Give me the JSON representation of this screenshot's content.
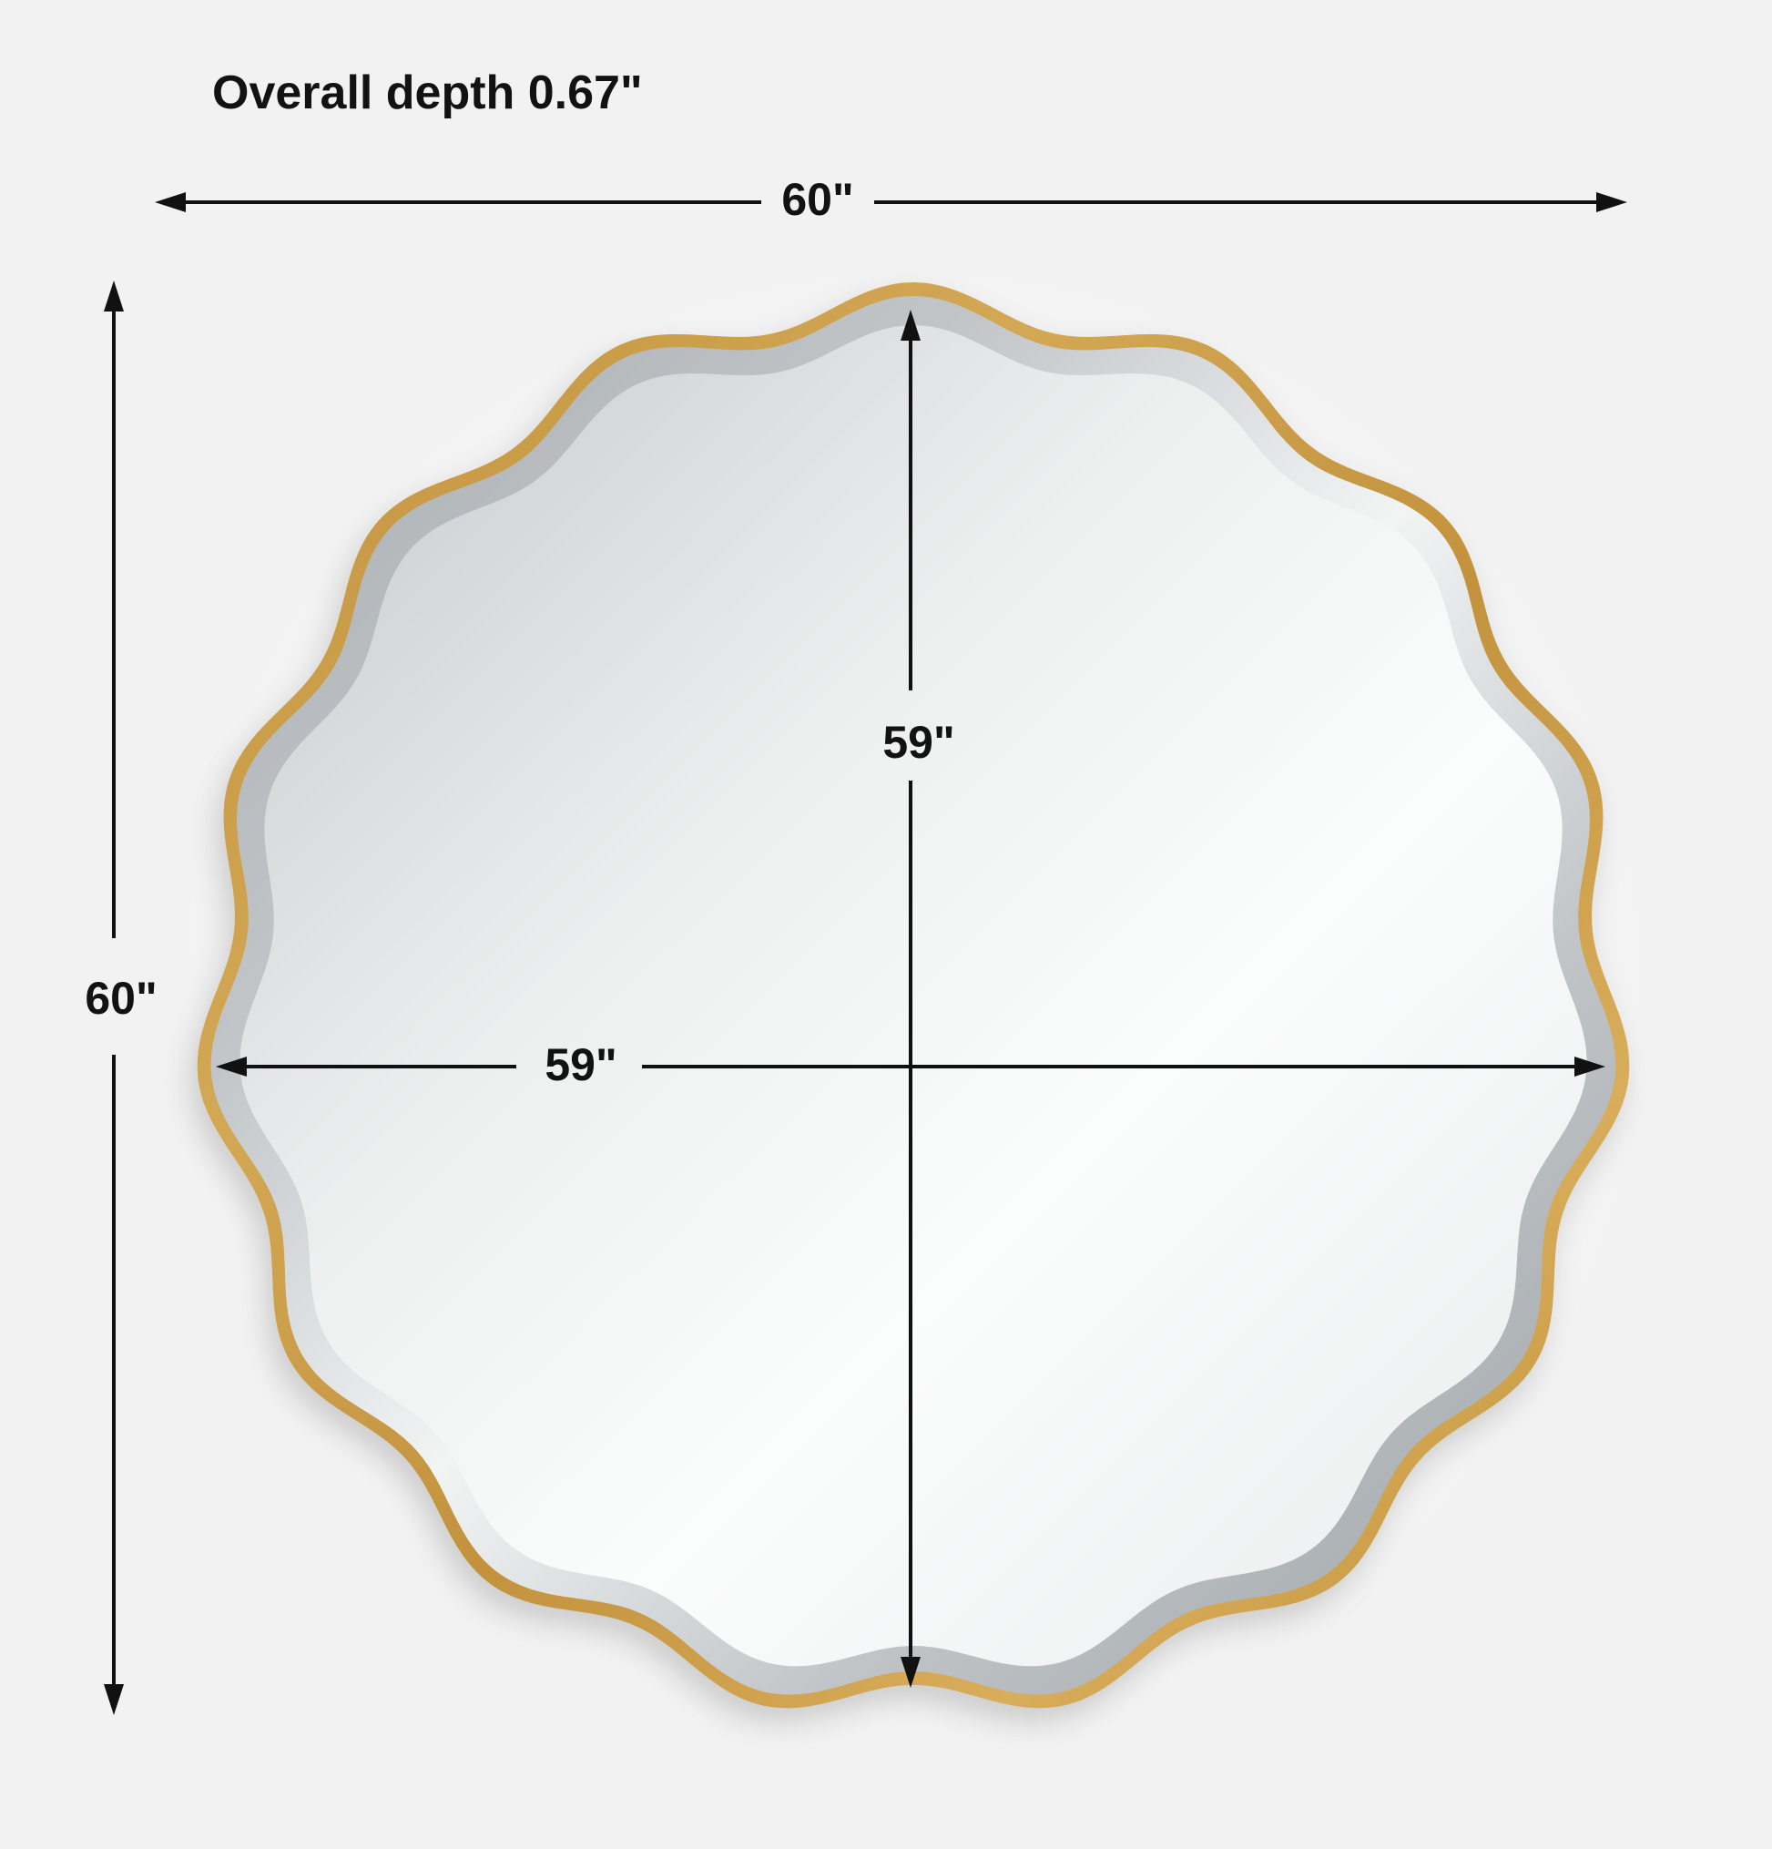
{
  "diagram": {
    "type": "product-dimension-diagram",
    "product": "Round scalloped wall mirror with gold frame and beveled edge",
    "background_color": "#f2f2f2",
    "frame_color": "#c99a45",
    "bevel_color": "#a8adb1",
    "dimension_line_color": "#111111"
  },
  "labels": {
    "overall_depth": "Overall depth 0.67\"",
    "outer_width": "60\"",
    "outer_height": "60\"",
    "inner_width": "59\"",
    "inner_height": "59\""
  }
}
